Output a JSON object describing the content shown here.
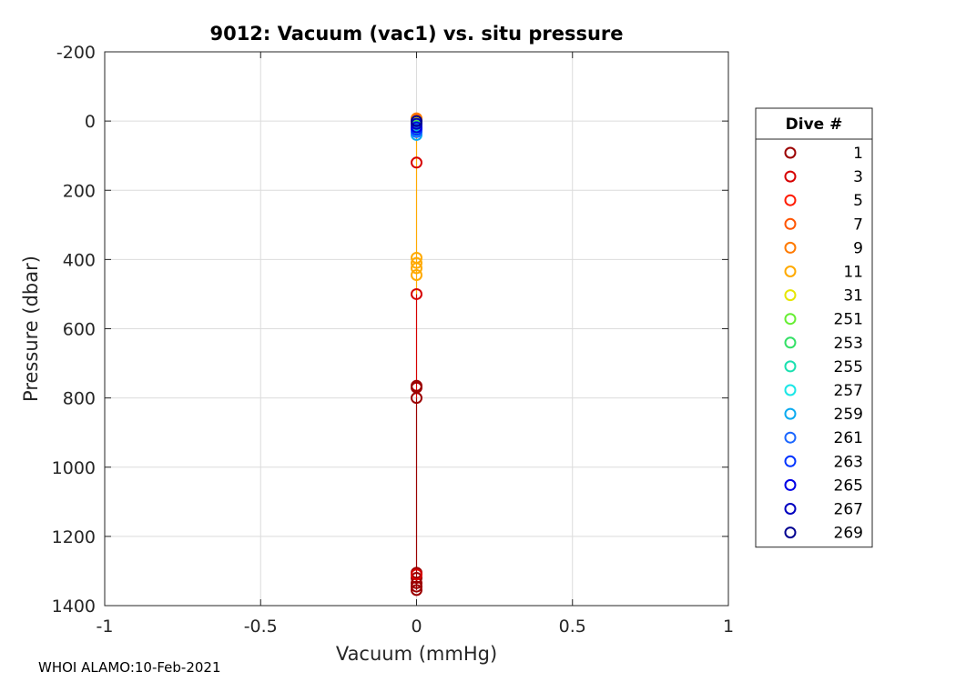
{
  "chart_data": {
    "type": "scatter",
    "title": "9012: Vacuum (vac1) vs. situ pressure",
    "xlabel": "Vacuum (mmHg)",
    "ylabel": "Pressure (dbar)",
    "xlim": [
      -1,
      1
    ],
    "ylim": [
      -200,
      1400
    ],
    "y_reversed": true,
    "grid": true,
    "x_ticks": [
      "-1",
      "-0.5",
      "0",
      "0.5",
      "1"
    ],
    "x_tick_values": [
      -1,
      -0.5,
      0,
      0.5,
      1
    ],
    "y_ticks": [
      "-200",
      "0",
      "200",
      "400",
      "600",
      "800",
      "1000",
      "1200",
      "1400"
    ],
    "y_tick_values": [
      -200,
      0,
      200,
      400,
      600,
      800,
      1000,
      1200,
      1400
    ],
    "legend": {
      "title": "Dive #",
      "placement": "outside-right"
    },
    "series": [
      {
        "name": "1",
        "color": "#9b0000",
        "x": [
          0,
          0,
          0,
          0,
          0,
          0,
          0,
          0,
          0
        ],
        "y": [
          5,
          770,
          765,
          800,
          1305,
          1320,
          1335,
          1345,
          1355
        ]
      },
      {
        "name": "3",
        "color": "#d60000",
        "x": [
          0,
          0,
          0,
          0
        ],
        "y": [
          3,
          120,
          500,
          1310
        ]
      },
      {
        "name": "5",
        "color": "#ff1a00",
        "x": [
          0,
          0
        ],
        "y": [
          2,
          8
        ]
      },
      {
        "name": "7",
        "color": "#ff5500",
        "x": [
          0,
          0
        ],
        "y": [
          -5,
          4
        ]
      },
      {
        "name": "9",
        "color": "#ff7a00",
        "x": [
          0,
          0
        ],
        "y": [
          -8,
          2
        ]
      },
      {
        "name": "11",
        "color": "#ffaa00",
        "x": [
          0,
          0,
          0,
          0,
          0
        ],
        "y": [
          0,
          395,
          410,
          425,
          445
        ]
      },
      {
        "name": "31",
        "color": "#e6e600",
        "x": [
          0
        ],
        "y": [
          5
        ]
      },
      {
        "name": "251",
        "color": "#66ee33",
        "x": [
          0
        ],
        "y": [
          10
        ]
      },
      {
        "name": "253",
        "color": "#33e066",
        "x": [
          0
        ],
        "y": [
          15
        ]
      },
      {
        "name": "255",
        "color": "#1ae0b0",
        "x": [
          0
        ],
        "y": [
          20
        ]
      },
      {
        "name": "257",
        "color": "#1ae6e6",
        "x": [
          0
        ],
        "y": [
          28
        ]
      },
      {
        "name": "259",
        "color": "#0aaaf0",
        "x": [
          0
        ],
        "y": [
          40
        ]
      },
      {
        "name": "261",
        "color": "#1a66ff",
        "x": [
          0
        ],
        "y": [
          32
        ]
      },
      {
        "name": "263",
        "color": "#0033ff",
        "x": [
          0
        ],
        "y": [
          25
        ]
      },
      {
        "name": "265",
        "color": "#0000e6",
        "x": [
          0
        ],
        "y": [
          18
        ]
      },
      {
        "name": "267",
        "color": "#0000c0",
        "x": [
          0
        ],
        "y": [
          8
        ]
      },
      {
        "name": "269",
        "color": "#000090",
        "x": [
          0
        ],
        "y": [
          0
        ]
      }
    ],
    "lines": [
      {
        "color": "#9b0000",
        "x": [
          0,
          0
        ],
        "y": [
          800,
          1355
        ]
      },
      {
        "color": "#d60000",
        "x": [
          0,
          0
        ],
        "y": [
          500,
          800
        ]
      },
      {
        "color": "#ffaa00",
        "x": [
          0,
          0
        ],
        "y": [
          0,
          500
        ]
      }
    ]
  },
  "footer": "WHOI ALAMO:10-Feb-2021"
}
